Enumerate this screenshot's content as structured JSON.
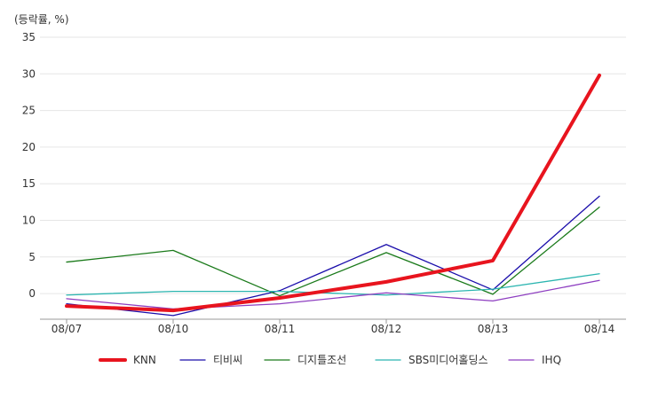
{
  "chart_data": {
    "type": "line",
    "unit_label": "(등락률, %)",
    "categories": [
      "08/07",
      "08/10",
      "08/11",
      "08/12",
      "08/13",
      "08/14"
    ],
    "ylim": [
      -3.5,
      35
    ],
    "y_ticks": [
      0,
      5,
      10,
      15,
      20,
      25,
      30,
      35
    ],
    "grid": true,
    "legend_position": "bottom",
    "series": [
      {
        "name": "KNN",
        "color": "#e8141e",
        "values": [
          -1.7,
          -2.3,
          -0.6,
          1.6,
          4.5,
          29.8
        ]
      },
      {
        "name": "티비씨",
        "color": "#1a0dab",
        "values": [
          -1.4,
          -3.0,
          0.4,
          6.7,
          0.5,
          13.3
        ]
      },
      {
        "name": "디지틀조선",
        "color": "#1a7a1a",
        "values": [
          4.3,
          5.9,
          -0.3,
          5.6,
          -0.1,
          11.8
        ]
      },
      {
        "name": "SBS미디어홀딩스",
        "color": "#2bb5b0",
        "values": [
          -0.2,
          0.3,
          0.3,
          -0.2,
          0.6,
          2.7
        ]
      },
      {
        "name": "IHQ",
        "color": "#8e3fc1",
        "values": [
          -0.7,
          -2.1,
          -1.4,
          0.1,
          -1.0,
          1.8
        ]
      }
    ]
  }
}
